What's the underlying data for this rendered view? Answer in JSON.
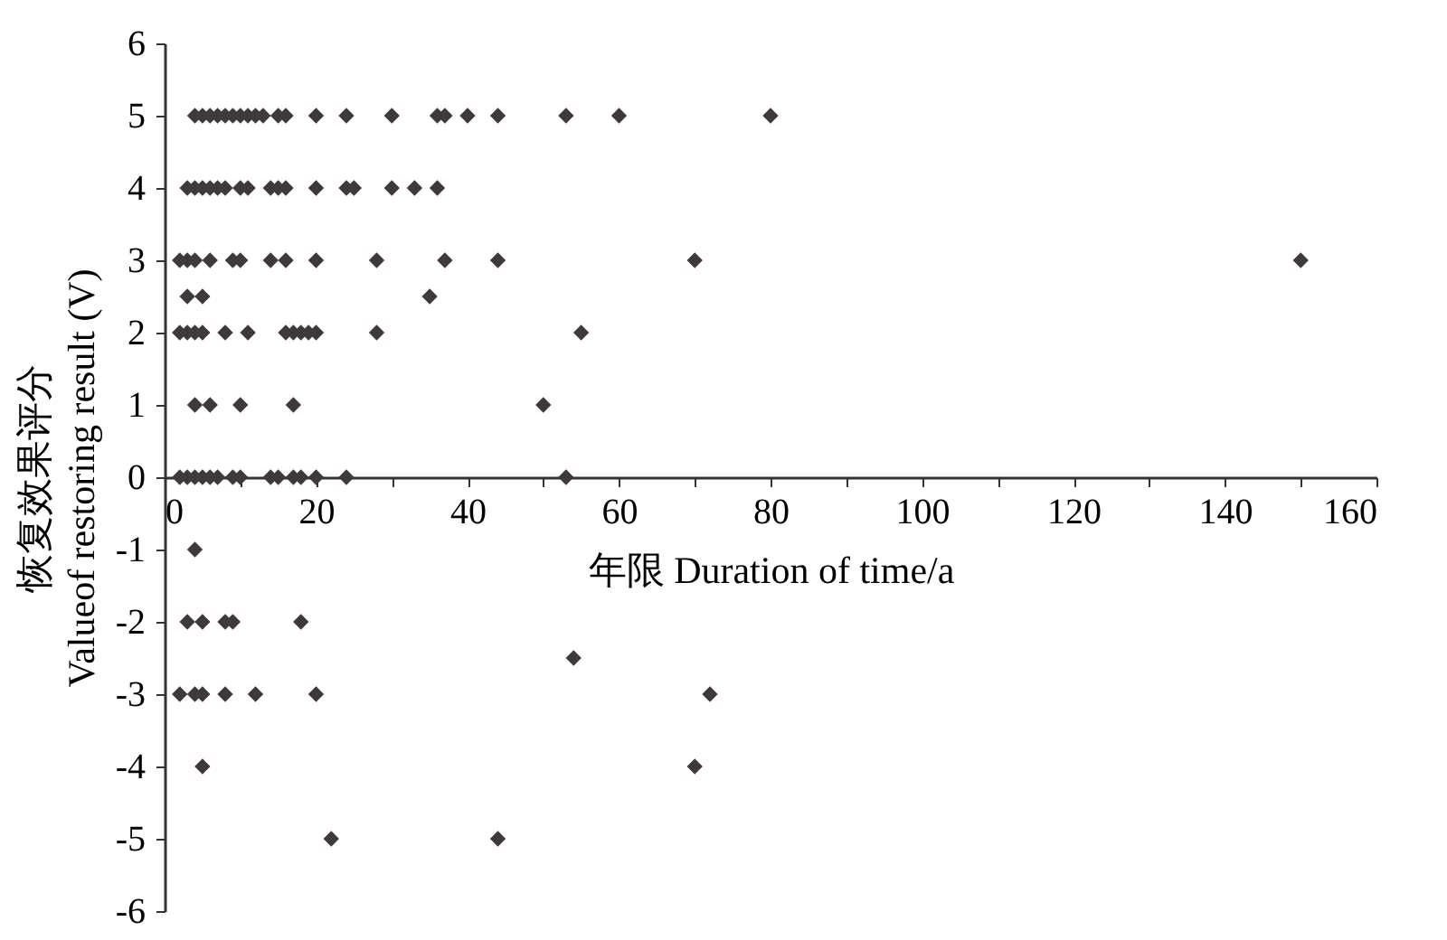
{
  "chart_data": {
    "type": "scatter",
    "xlabel": "年限 Duration of time/a",
    "ylabel": "恢复效果评分\nValueof restoring result (V)",
    "marker": "diamond",
    "grid": false,
    "xlim": [
      0,
      160
    ],
    "ylim": [
      -6,
      6
    ],
    "xticks": [
      0,
      {
        "value": 10,
        "label": null
      },
      20,
      {
        "value": 30,
        "label": null
      },
      40,
      {
        "value": 50,
        "label": null
      },
      60,
      {
        "value": 70,
        "label": null
      },
      80,
      {
        "value": 90,
        "label": null
      },
      100,
      {
        "value": 110,
        "label": null
      },
      120,
      {
        "value": 130,
        "label": null
      },
      140,
      {
        "value": 150,
        "label": null
      },
      160
    ],
    "yticks": [
      -6,
      -5,
      -4,
      -3,
      -2,
      -1,
      0,
      1,
      2,
      3,
      4,
      5,
      6
    ],
    "series": [
      {
        "color": "#3f3a3a",
        "x": [
          4,
          5,
          6,
          7,
          8,
          9,
          10,
          11,
          12,
          13,
          15,
          16,
          20,
          24,
          30,
          36,
          37,
          40,
          44,
          53,
          60,
          80,
          3,
          4,
          5,
          6,
          7,
          8,
          10,
          11,
          14,
          15,
          16,
          20,
          24,
          25,
          30,
          33,
          36,
          2,
          3,
          4,
          6,
          9,
          10,
          14,
          16,
          20,
          28,
          37,
          44,
          70,
          150,
          3,
          5,
          35,
          2,
          3,
          4,
          5,
          8,
          11,
          16,
          17,
          18,
          19,
          20,
          28,
          55,
          4,
          6,
          10,
          17,
          50,
          2,
          3,
          4,
          5,
          6,
          7,
          9,
          10,
          14,
          15,
          17,
          18,
          20,
          24,
          53,
          4,
          3,
          5,
          8,
          9,
          18,
          54,
          2,
          4,
          5,
          8,
          12,
          20,
          72,
          5,
          70,
          22,
          44
        ],
        "values": [
          5,
          5,
          5,
          5,
          5,
          5,
          5,
          5,
          5,
          5,
          5,
          5,
          5,
          5,
          5,
          5,
          5,
          5,
          5,
          5,
          5,
          5,
          4,
          4,
          4,
          4,
          4,
          4,
          4,
          4,
          4,
          4,
          4,
          4,
          4,
          4,
          4,
          4,
          4,
          3,
          3,
          3,
          3,
          3,
          3,
          3,
          3,
          3,
          3,
          3,
          3,
          3,
          3,
          2.5,
          2.5,
          2.5,
          2,
          2,
          2,
          2,
          2,
          2,
          2,
          2,
          2,
          2,
          2,
          2,
          2,
          1,
          1,
          1,
          1,
          1,
          0,
          0,
          0,
          0,
          0,
          0,
          0,
          0,
          0,
          0,
          0,
          0,
          0,
          0,
          0,
          -1,
          -2,
          -2,
          -2,
          -2,
          -2,
          -2.5,
          -3,
          -3,
          -3,
          -3,
          -3,
          -3,
          -3,
          -4,
          -4,
          -5,
          -5
        ]
      }
    ]
  }
}
